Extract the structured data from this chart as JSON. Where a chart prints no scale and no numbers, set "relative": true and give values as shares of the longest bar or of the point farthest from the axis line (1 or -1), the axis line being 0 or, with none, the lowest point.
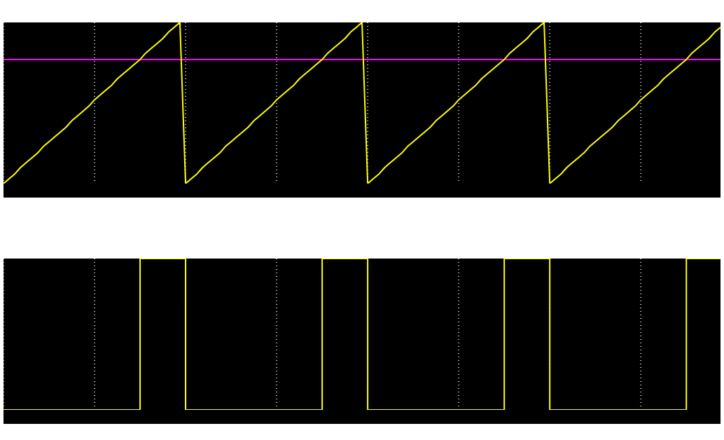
{
  "chart_data": [
    {
      "type": "line",
      "relative": true,
      "grid": true,
      "categories": [
        null,
        null,
        null,
        null,
        null,
        null,
        null,
        null,
        null,
        null,
        null,
        null,
        null,
        null,
        null,
        null,
        null,
        null,
        null,
        null,
        null,
        null,
        null,
        null,
        null,
        null,
        null,
        null,
        null,
        null,
        null,
        null,
        null,
        null,
        null,
        null,
        null,
        null,
        null,
        null,
        null,
        null,
        null,
        null,
        null,
        null,
        null,
        null,
        null,
        null,
        null,
        null,
        null,
        null,
        null,
        null,
        null,
        null,
        null,
        null,
        null,
        null,
        null,
        null,
        null,
        null,
        null,
        null,
        null,
        null,
        null,
        null,
        null,
        null,
        null,
        null,
        null,
        null,
        null,
        null,
        null,
        null,
        null,
        null,
        null,
        null,
        null,
        null,
        null,
        null,
        null,
        null,
        null,
        null,
        null,
        null,
        null,
        null,
        null,
        null,
        null,
        null,
        null,
        null,
        null,
        null,
        null,
        null,
        null,
        null,
        null,
        null,
        null,
        null,
        null,
        null,
        null,
        null,
        null,
        null,
        null,
        null,
        null,
        null,
        null,
        null,
        null
      ],
      "series": [
        {
          "color": "#ffff00",
          "values": [
            0,
            0.03,
            0.06,
            0.1,
            0.13,
            0.16,
            0.19,
            0.23,
            0.26,
            0.29,
            0.32,
            0.35,
            0.39,
            0.42,
            0.45,
            0.48,
            0.52,
            0.55,
            0.58,
            0.61,
            0.65,
            0.68,
            0.71,
            0.74,
            0.77,
            0.81,
            0.84,
            0.87,
            0.9,
            0.94,
            0.97,
            1,
            0,
            0.03,
            0.06,
            0.1,
            0.13,
            0.16,
            0.19,
            0.23,
            0.26,
            0.29,
            0.32,
            0.35,
            0.39,
            0.42,
            0.45,
            0.48,
            0.52,
            0.55,
            0.58,
            0.61,
            0.65,
            0.68,
            0.71,
            0.74,
            0.77,
            0.81,
            0.84,
            0.87,
            0.9,
            0.94,
            0.97,
            1,
            0,
            0.03,
            0.06,
            0.1,
            0.13,
            0.16,
            0.19,
            0.23,
            0.26,
            0.29,
            0.32,
            0.35,
            0.39,
            0.42,
            0.45,
            0.48,
            0.52,
            0.55,
            0.58,
            0.61,
            0.65,
            0.68,
            0.71,
            0.74,
            0.77,
            0.81,
            0.84,
            0.87,
            0.9,
            0.94,
            0.97,
            1,
            0,
            0.03,
            0.06,
            0.1,
            0.13,
            0.16,
            0.19,
            0.23,
            0.26,
            0.29,
            0.32,
            0.35,
            0.39,
            0.42,
            0.45,
            0.48,
            0.52,
            0.55,
            0.58,
            0.61,
            0.65,
            0.68,
            0.71,
            0.74,
            0.77,
            0.81,
            0.84,
            0.87,
            0.9,
            0.94,
            0.97
          ]
        }
      ],
      "ref_lines": [
        {
          "axis": "y",
          "value": 0.77,
          "color": "#ff00ff"
        }
      ]
    },
    {
      "type": "step",
      "relative": true,
      "grid": true,
      "categories": [
        null,
        null,
        null,
        null,
        null,
        null,
        null,
        null,
        null,
        null,
        null,
        null,
        null,
        null,
        null,
        null,
        null,
        null,
        null,
        null,
        null,
        null,
        null,
        null,
        null,
        null,
        null,
        null,
        null,
        null,
        null,
        null,
        null,
        null,
        null,
        null,
        null,
        null,
        null,
        null,
        null,
        null,
        null,
        null,
        null,
        null,
        null,
        null,
        null,
        null,
        null,
        null,
        null,
        null,
        null,
        null,
        null,
        null,
        null,
        null,
        null,
        null,
        null,
        null,
        null,
        null,
        null,
        null,
        null,
        null,
        null,
        null,
        null,
        null,
        null,
        null,
        null,
        null,
        null,
        null,
        null,
        null,
        null,
        null,
        null,
        null,
        null,
        null,
        null,
        null,
        null,
        null,
        null,
        null,
        null,
        null,
        null,
        null,
        null,
        null,
        null,
        null,
        null,
        null,
        null,
        null,
        null,
        null,
        null,
        null,
        null,
        null,
        null,
        null,
        null,
        null,
        null,
        null,
        null,
        null,
        null,
        null,
        null,
        null,
        null,
        null,
        null
      ],
      "series": [
        {
          "color": "#ffff00",
          "values": [
            0,
            0,
            0,
            0,
            0,
            0,
            0,
            0,
            0,
            0,
            0,
            0,
            0,
            0,
            0,
            0,
            0,
            0,
            0,
            0,
            0,
            0,
            0,
            0,
            1,
            1,
            1,
            1,
            1,
            1,
            1,
            1,
            0,
            0,
            0,
            0,
            0,
            0,
            0,
            0,
            0,
            0,
            0,
            0,
            0,
            0,
            0,
            0,
            0,
            0,
            0,
            0,
            0,
            0,
            0,
            0,
            1,
            1,
            1,
            1,
            1,
            1,
            1,
            1,
            0,
            0,
            0,
            0,
            0,
            0,
            0,
            0,
            0,
            0,
            0,
            0,
            0,
            0,
            0,
            0,
            0,
            0,
            0,
            0,
            0,
            0,
            0,
            0,
            1,
            1,
            1,
            1,
            1,
            1,
            1,
            1,
            0,
            0,
            0,
            0,
            0,
            0,
            0,
            0,
            0,
            0,
            0,
            0,
            0,
            0,
            0,
            0,
            0,
            0,
            0,
            0,
            0,
            0,
            0,
            0,
            1,
            1,
            1,
            1,
            1,
            1,
            1
          ]
        }
      ]
    }
  ]
}
